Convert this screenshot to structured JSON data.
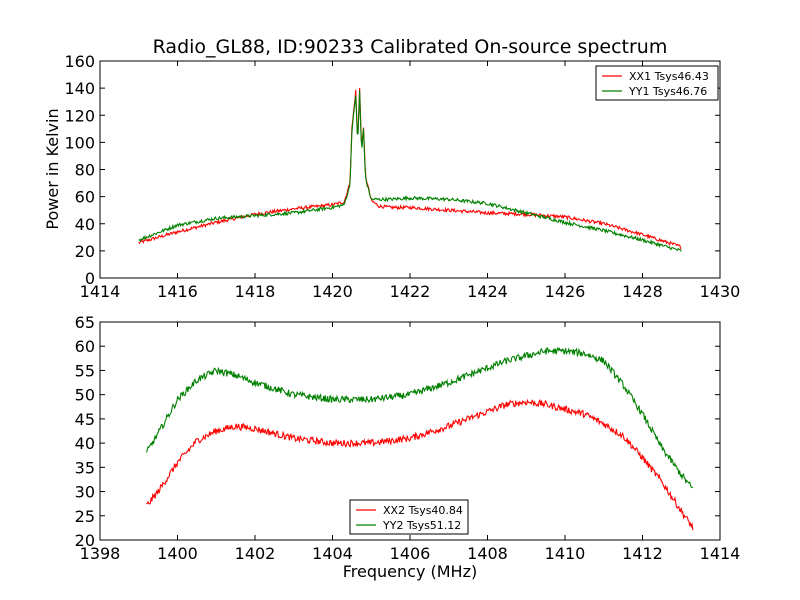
{
  "chart_data": [
    {
      "type": "line",
      "title": "Radio_GL88, ID:90233 Calibrated On-source spectrum",
      "xlabel": "",
      "ylabel": "Power in Kelvin",
      "xlim": [
        1414,
        1430
      ],
      "ylim": [
        0,
        160
      ],
      "xticks": [
        "1414",
        "1416",
        "1418",
        "1420",
        "1422",
        "1424",
        "1426",
        "1428",
        "1430"
      ],
      "yticks": [
        "0",
        "20",
        "40",
        "60",
        "80",
        "100",
        "120",
        "140",
        "160"
      ],
      "legend_position": "top-right",
      "series": [
        {
          "name": "XX1 Tsys46.43",
          "color": "#ff0000",
          "x": [
            1415.0,
            1416.0,
            1417.0,
            1418.0,
            1419.0,
            1420.0,
            1420.3,
            1420.45,
            1420.5,
            1420.6,
            1420.65,
            1420.7,
            1420.75,
            1420.8,
            1420.85,
            1420.9,
            1421.0,
            1421.2,
            1421.5,
            1422.0,
            1423.0,
            1424.0,
            1425.0,
            1426.0,
            1427.0,
            1428.0,
            1429.0
          ],
          "y": [
            26,
            34,
            41,
            47,
            51,
            54,
            56,
            70,
            110,
            138,
            100,
            141,
            95,
            112,
            75,
            70,
            57,
            53,
            52,
            52,
            50,
            48,
            47,
            45,
            40,
            32,
            23
          ]
        },
        {
          "name": "YY1 Tsys46.76",
          "color": "#008000",
          "x": [
            1415.0,
            1416.0,
            1417.0,
            1418.0,
            1419.0,
            1420.0,
            1420.3,
            1420.45,
            1420.5,
            1420.6,
            1420.65,
            1420.7,
            1420.75,
            1420.8,
            1420.85,
            1420.9,
            1421.0,
            1421.2,
            1421.5,
            1422.0,
            1423.0,
            1424.0,
            1425.0,
            1426.0,
            1427.0,
            1428.0,
            1429.0
          ],
          "y": [
            28,
            39,
            44,
            46,
            48,
            52,
            54,
            68,
            108,
            135,
            98,
            138,
            92,
            110,
            74,
            68,
            58,
            58,
            58,
            59,
            58,
            55,
            48,
            41,
            35,
            28,
            20
          ]
        }
      ]
    },
    {
      "type": "line",
      "title": "",
      "xlabel": "Frequency (MHz)",
      "ylabel": "",
      "xlim": [
        1398,
        1414
      ],
      "ylim": [
        20,
        65
      ],
      "xticks": [
        "1398",
        "1400",
        "1402",
        "1404",
        "1406",
        "1408",
        "1410",
        "1412",
        "1414"
      ],
      "yticks": [
        "20",
        "25",
        "30",
        "35",
        "40",
        "45",
        "50",
        "55",
        "60",
        "65"
      ],
      "legend_position": "bottom-center",
      "series": [
        {
          "name": "XX2 Tsys40.84",
          "color": "#ff0000",
          "x": [
            1399.2,
            1399.5,
            1400.0,
            1400.5,
            1401.0,
            1401.5,
            1402.0,
            1403.0,
            1404.0,
            1405.0,
            1406.0,
            1407.0,
            1408.0,
            1408.5,
            1409.0,
            1409.5,
            1410.0,
            1410.5,
            1411.0,
            1411.5,
            1412.0,
            1412.5,
            1413.0,
            1413.3
          ],
          "y": [
            27,
            30,
            36,
            40.5,
            42.5,
            43.5,
            43,
            41,
            40,
            40,
            41,
            43.5,
            46.5,
            48,
            48.5,
            48,
            47,
            46,
            44,
            41.5,
            37,
            32,
            26,
            22.5
          ]
        },
        {
          "name": "YY2 Tsys51.12",
          "color": "#008000",
          "x": [
            1399.2,
            1399.5,
            1400.0,
            1400.5,
            1401.0,
            1401.5,
            1402.0,
            1403.0,
            1404.0,
            1405.0,
            1406.0,
            1407.0,
            1408.0,
            1408.5,
            1409.0,
            1409.5,
            1410.0,
            1410.5,
            1411.0,
            1411.5,
            1412.0,
            1412.5,
            1413.0,
            1413.3
          ],
          "y": [
            38,
            42,
            49,
            53,
            55,
            54,
            52.5,
            50,
            49,
            49,
            50,
            52.5,
            55.5,
            57,
            58,
            59,
            59,
            58.5,
            57,
            52,
            46,
            39,
            33.5,
            30.5
          ]
        }
      ]
    }
  ]
}
